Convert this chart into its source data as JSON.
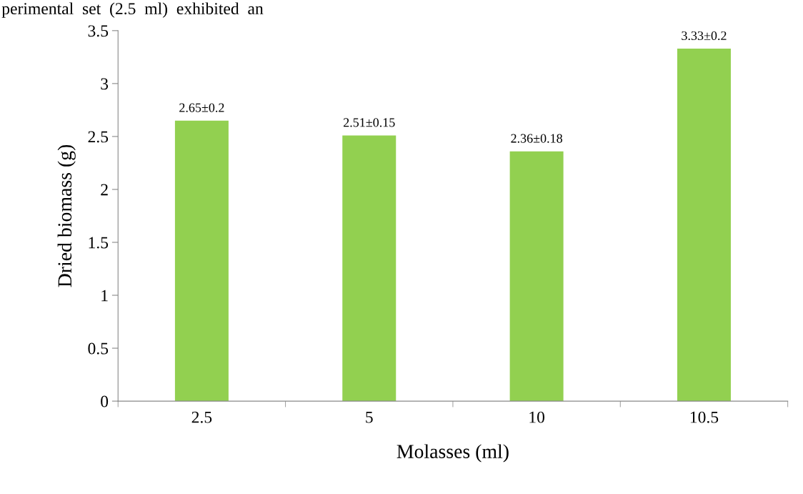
{
  "chart_data": {
    "type": "bar",
    "annotations": [
      "perimental  set  (2.5  ml)  exhibited  an"
    ],
    "xlabel": "Molasses (ml)",
    "ylabel": "Dried biomass (g)",
    "categories": [
      "2.5",
      "5",
      "10",
      "10.5"
    ],
    "values": [
      2.65,
      2.51,
      2.36,
      3.33
    ],
    "value_labels": [
      "2.65±0.2",
      "2.51±0.15",
      "2.36±0.18",
      "3.33±0.2"
    ],
    "color": "#92d050",
    "ylim": [
      0,
      3.5
    ],
    "yticks": [
      0,
      {
        "value": 0.5,
        "label": "0.5"
      },
      1,
      {
        "value": 1.5,
        "label": "1.5"
      },
      2,
      {
        "value": 2.5,
        "label": "2.5"
      },
      3,
      {
        "value": 3.5,
        "label": "3.5"
      }
    ],
    "grid": false
  }
}
